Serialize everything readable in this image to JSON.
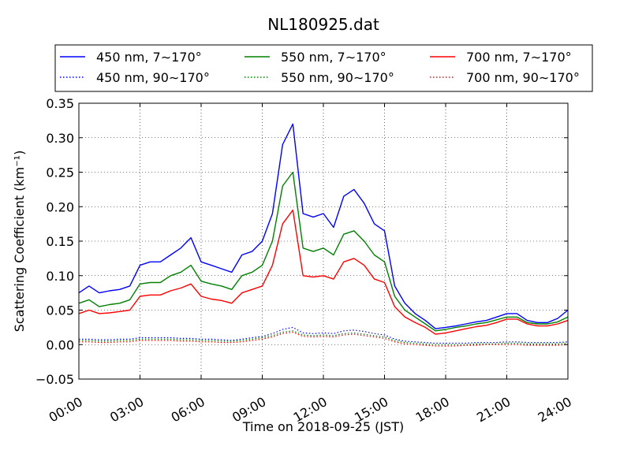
{
  "chart_data": {
    "type": "line",
    "title": "NL180925.dat",
    "xlabel": "Time on 2018-09-25 (JST)",
    "ylabel": "Scattering Coefficient (km⁻¹)",
    "xlim": [
      "00:00",
      "24:00"
    ],
    "ylim": [
      -0.05,
      0.35
    ],
    "grid": true,
    "legend_position": "top (above plot)",
    "x_ticks": [
      "00:00",
      "03:00",
      "06:00",
      "09:00",
      "12:00",
      "15:00",
      "18:00",
      "21:00",
      "24:00"
    ],
    "y_ticks": [
      "−0.05",
      "0.00",
      "0.05",
      "0.10",
      "0.15",
      "0.20",
      "0.25",
      "0.30",
      "0.35"
    ],
    "x": [
      "00:00",
      "00:30",
      "01:00",
      "01:30",
      "02:00",
      "02:30",
      "03:00",
      "03:30",
      "04:00",
      "04:30",
      "05:00",
      "05:30",
      "06:00",
      "06:30",
      "07:00",
      "07:30",
      "08:00",
      "08:30",
      "09:00",
      "09:30",
      "10:00",
      "10:30",
      "11:00",
      "11:30",
      "12:00",
      "12:30",
      "13:00",
      "13:30",
      "14:00",
      "14:30",
      "15:00",
      "15:30",
      "16:00",
      "16:30",
      "17:00",
      "17:30",
      "18:00",
      "18:30",
      "19:00",
      "19:30",
      "20:00",
      "20:30",
      "21:00",
      "21:30",
      "22:00",
      "22:30",
      "23:00",
      "23:30",
      "24:00"
    ],
    "series": [
      {
        "name": "450 nm, 7∼170°",
        "color": "#0000ff",
        "style": "solid",
        "values": [
          0.075,
          0.085,
          0.075,
          0.078,
          0.08,
          0.085,
          0.115,
          0.12,
          0.12,
          0.13,
          0.14,
          0.155,
          0.12,
          0.115,
          0.11,
          0.105,
          0.13,
          0.135,
          0.15,
          0.19,
          0.29,
          0.32,
          0.19,
          0.185,
          0.19,
          0.17,
          0.215,
          0.225,
          0.205,
          0.175,
          0.165,
          0.085,
          0.06,
          0.045,
          0.035,
          0.023,
          0.025,
          0.027,
          0.03,
          0.033,
          0.035,
          0.04,
          0.045,
          0.045,
          0.035,
          0.032,
          0.032,
          0.038,
          0.05
        ]
      },
      {
        "name": "550 nm, 7∼170°",
        "color": "#008000",
        "style": "solid",
        "values": [
          0.06,
          0.065,
          0.055,
          0.058,
          0.06,
          0.065,
          0.088,
          0.09,
          0.09,
          0.1,
          0.105,
          0.115,
          0.092,
          0.088,
          0.085,
          0.08,
          0.1,
          0.105,
          0.115,
          0.15,
          0.23,
          0.25,
          0.14,
          0.135,
          0.14,
          0.13,
          0.16,
          0.165,
          0.15,
          0.13,
          0.12,
          0.07,
          0.05,
          0.04,
          0.03,
          0.02,
          0.022,
          0.025,
          0.027,
          0.03,
          0.032,
          0.036,
          0.04,
          0.04,
          0.032,
          0.03,
          0.03,
          0.033,
          0.04
        ]
      },
      {
        "name": "700 nm, 7∼170°",
        "color": "#ff0000",
        "style": "solid",
        "values": [
          0.045,
          0.05,
          0.045,
          0.046,
          0.048,
          0.05,
          0.07,
          0.072,
          0.072,
          0.078,
          0.082,
          0.088,
          0.07,
          0.066,
          0.064,
          0.06,
          0.075,
          0.08,
          0.085,
          0.115,
          0.175,
          0.195,
          0.1,
          0.098,
          0.1,
          0.095,
          0.12,
          0.125,
          0.115,
          0.095,
          0.09,
          0.055,
          0.04,
          0.032,
          0.025,
          0.015,
          0.017,
          0.02,
          0.023,
          0.026,
          0.028,
          0.032,
          0.037,
          0.037,
          0.03,
          0.027,
          0.027,
          0.03,
          0.035
        ]
      },
      {
        "name": "450 nm, 90∼170°",
        "color": "#0000ff",
        "style": "dotted",
        "values": [
          0.008,
          0.008,
          0.007,
          0.007,
          0.008,
          0.008,
          0.01,
          0.01,
          0.01,
          0.01,
          0.009,
          0.009,
          0.008,
          0.008,
          0.007,
          0.006,
          0.008,
          0.01,
          0.012,
          0.016,
          0.022,
          0.025,
          0.017,
          0.016,
          0.017,
          0.016,
          0.02,
          0.021,
          0.019,
          0.016,
          0.014,
          0.008,
          0.005,
          0.004,
          0.003,
          0.002,
          0.002,
          0.002,
          0.002,
          0.003,
          0.003,
          0.003,
          0.004,
          0.004,
          0.003,
          0.003,
          0.003,
          0.003,
          0.004
        ]
      },
      {
        "name": "550 nm, 90∼170°",
        "color": "#008000",
        "style": "dotted",
        "values": [
          0.006,
          0.006,
          0.005,
          0.005,
          0.006,
          0.006,
          0.008,
          0.008,
          0.008,
          0.008,
          0.007,
          0.007,
          0.006,
          0.006,
          0.005,
          0.005,
          0.006,
          0.008,
          0.01,
          0.013,
          0.018,
          0.02,
          0.014,
          0.013,
          0.014,
          0.013,
          0.016,
          0.017,
          0.015,
          0.013,
          0.011,
          0.006,
          0.003,
          0.002,
          0.001,
          0.0,
          0.0,
          0.0,
          0.0,
          0.001,
          0.001,
          0.001,
          0.002,
          0.002,
          0.001,
          0.001,
          0.001,
          0.001,
          0.002
        ]
      },
      {
        "name": "700 nm, 90∼170°",
        "color": "#ff0000",
        "style": "dotted",
        "values": [
          0.004,
          0.004,
          0.003,
          0.003,
          0.004,
          0.004,
          0.006,
          0.006,
          0.006,
          0.006,
          0.005,
          0.005,
          0.004,
          0.004,
          0.003,
          0.003,
          0.004,
          0.006,
          0.008,
          0.011,
          0.016,
          0.018,
          0.012,
          0.011,
          0.012,
          0.011,
          0.014,
          0.015,
          0.013,
          0.011,
          0.009,
          0.004,
          0.001,
          0.0,
          -0.001,
          -0.002,
          -0.002,
          -0.002,
          -0.001,
          -0.001,
          0.0,
          0.0,
          0.0,
          0.0,
          -0.001,
          -0.001,
          -0.001,
          -0.001,
          0.0
        ]
      }
    ]
  }
}
